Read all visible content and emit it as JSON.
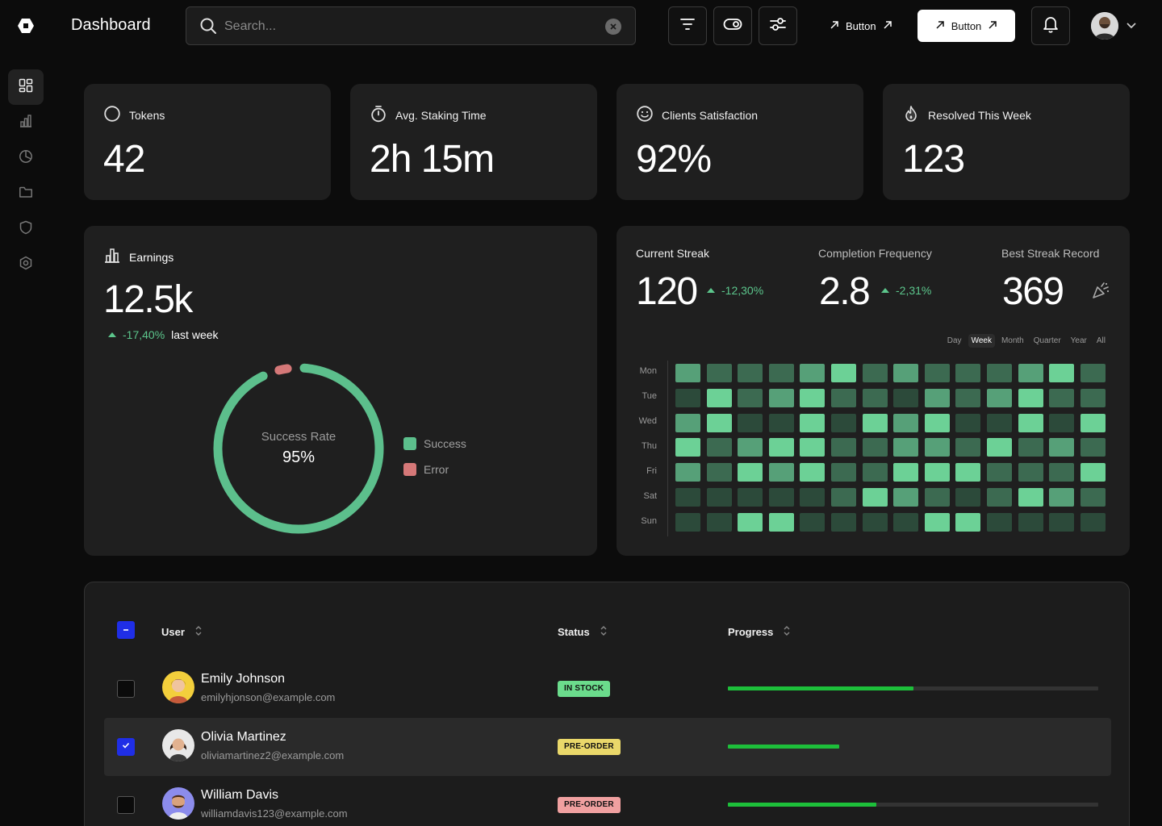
{
  "header": {
    "app_title": "Dashboard",
    "search_placeholder": "Search...",
    "button_ghost_label": "Button",
    "button_solid_label": "Button"
  },
  "sidebar": {
    "items": [
      {
        "icon": "grid-icon",
        "active": true
      },
      {
        "icon": "bar-chart-icon"
      },
      {
        "icon": "pie-chart-icon"
      },
      {
        "icon": "folder-icon"
      },
      {
        "icon": "shield-icon"
      },
      {
        "icon": "settings-icon"
      }
    ]
  },
  "stats": [
    {
      "label": "Tokens",
      "value": "42",
      "icon": "circle-icon"
    },
    {
      "label": "Avg. Staking Time",
      "value": "2h 15m",
      "icon": "stopwatch-icon"
    },
    {
      "label": "Clients Satisfaction",
      "value": "92%",
      "icon": "smile-icon"
    },
    {
      "label": "Resolved This Week",
      "value": "123",
      "icon": "flame-icon"
    }
  ],
  "earnings": {
    "label": "Earnings",
    "value": "12.5k",
    "delta": "-17,40%",
    "delta_suffix": "last week",
    "donut": {
      "title": "Success Rate",
      "value": "95%",
      "success_fraction": 0.95,
      "legend": [
        {
          "label": "Success",
          "color": "#5cbf8c"
        },
        {
          "label": "Error",
          "color": "#d57878"
        }
      ]
    }
  },
  "streak": {
    "current_label": "Current Streak",
    "current_value": "120",
    "current_delta": "-12,30%",
    "freq_label": "Completion Frequency",
    "freq_value": "2.8",
    "freq_delta": "-2,31%",
    "best_label": "Best Streak Record",
    "best_value": "369",
    "ranges": [
      "Day",
      "Week",
      "Month",
      "Quarter",
      "Year",
      "All"
    ],
    "active_range": "Week",
    "days": [
      "Mon",
      "Tue",
      "Wed",
      "Thu",
      "Fri",
      "Sat",
      "Sun"
    ],
    "levels": [
      [
        2,
        1,
        1,
        1,
        2,
        3,
        1,
        2,
        1,
        1,
        1,
        2,
        3,
        1
      ],
      [
        0,
        3,
        1,
        2,
        3,
        1,
        1,
        0,
        2,
        1,
        2,
        3,
        1,
        1
      ],
      [
        2,
        3,
        0,
        0,
        3,
        0,
        3,
        2,
        3,
        0,
        0,
        3,
        0,
        3
      ],
      [
        3,
        1,
        2,
        3,
        3,
        1,
        1,
        2,
        2,
        1,
        3,
        1,
        2,
        1
      ],
      [
        2,
        1,
        3,
        2,
        3,
        1,
        1,
        3,
        3,
        3,
        1,
        1,
        1,
        3
      ],
      [
        0,
        0,
        0,
        0,
        0,
        1,
        3,
        2,
        1,
        0,
        1,
        3,
        2,
        1
      ],
      [
        0,
        0,
        3,
        3,
        0,
        0,
        0,
        0,
        3,
        3,
        0,
        0,
        0,
        0
      ]
    ],
    "level_colors": [
      "#2c4a3a",
      "#3c6a51",
      "#56a078",
      "#6cd196"
    ]
  },
  "table": {
    "headers": {
      "user": "User",
      "status": "Status",
      "progress": "Progress"
    },
    "rows": [
      {
        "name": "Emily Johnson",
        "email": "emilyhjonson@example.com",
        "status": "IN STOCK",
        "status_color": "#6bdc8c",
        "progress": 0.5,
        "checked": false,
        "avatar_color": "#f3cf3c"
      },
      {
        "name": "Olivia Martinez",
        "email": "oliviamartinez2@example.com",
        "status": "PRE-ORDER",
        "status_color": "#ead86a",
        "progress": 0.3,
        "checked": true,
        "avatar_color": "#e8e8e8"
      },
      {
        "name": "William Davis",
        "email": "williamdavis123@example.com",
        "status": "PRE-ORDER",
        "status_color": "#f0a0a0",
        "progress": 0.4,
        "checked": false,
        "avatar_color": "#8c8cec"
      }
    ]
  }
}
